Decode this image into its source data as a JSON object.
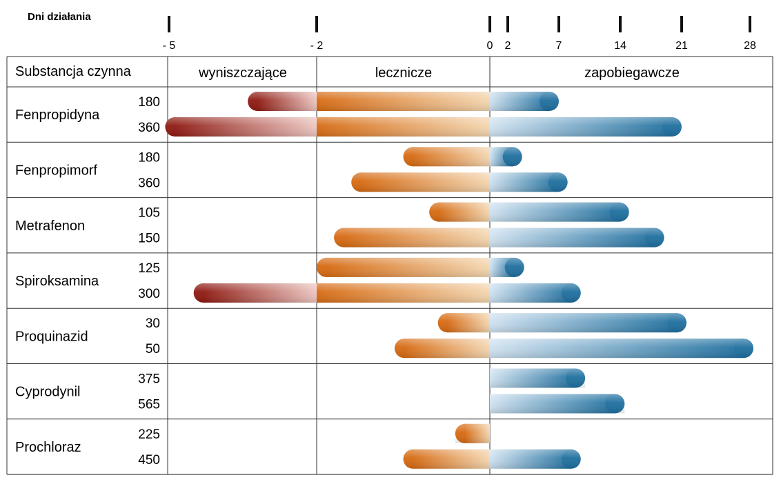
{
  "chart_data": {
    "type": "bar",
    "axis": {
      "title": "Dni działania",
      "ticks": [
        {
          "value": -5,
          "label": "- 5"
        },
        {
          "value": -2,
          "label": "- 2"
        },
        {
          "value": 0,
          "label": "0"
        },
        {
          "value": 2,
          "label": "2"
        },
        {
          "value": 7,
          "label": "7"
        },
        {
          "value": 14,
          "label": "14"
        },
        {
          "value": 21,
          "label": "21"
        },
        {
          "value": 28,
          "label": "28"
        }
      ]
    },
    "columns": {
      "substance": "Substancja czynna",
      "eradicative": "wyniszczające",
      "curative": "lecznicze",
      "protective": "zapobiegawcze"
    },
    "substances": [
      {
        "name": "Fenpropidyna",
        "doses": [
          {
            "dose": "180",
            "start": -3.4,
            "end": 7
          },
          {
            "dose": "360",
            "start": -5.2,
            "end": 21
          }
        ]
      },
      {
        "name": "Fenpropimorf",
        "doses": [
          {
            "dose": "180",
            "start": -1.0,
            "end": 3.4
          },
          {
            "dose": "360",
            "start": -1.6,
            "end": 8
          }
        ]
      },
      {
        "name": "Metrafenon",
        "doses": [
          {
            "dose": "105",
            "start": -0.7,
            "end": 15
          },
          {
            "dose": "150",
            "start": -1.8,
            "end": 19
          }
        ]
      },
      {
        "name": "Spiroksamina",
        "doses": [
          {
            "dose": "125",
            "start": -2.0,
            "end": 3.6
          },
          {
            "dose": "300",
            "start": -4.5,
            "end": 9.5
          }
        ]
      },
      {
        "name": "Proquinazid",
        "doses": [
          {
            "dose": "30",
            "start": -0.6,
            "end": 21.5
          },
          {
            "dose": "50",
            "start": -1.1,
            "end": 28.5
          }
        ]
      },
      {
        "name": "Cyprodynil",
        "doses": [
          {
            "dose": "375",
            "start": 0,
            "end": 10
          },
          {
            "dose": "565",
            "start": 0,
            "end": 14.5
          }
        ]
      },
      {
        "name": "Prochloraz",
        "doses": [
          {
            "dose": "225",
            "start": -0.4,
            "end": 0
          },
          {
            "dose": "450",
            "start": -1.0,
            "end": 9.5
          }
        ]
      }
    ],
    "colors": {
      "eradicative_dark": "#8e1a12",
      "eradicative_light": "#ecc5c0",
      "curative_dark": "#d66a12",
      "curative_light": "#f3d6b0",
      "protective_light": "#d0e2f0",
      "protective_dark": "#1f6f9f",
      "axis_red": "#d0241c",
      "axis_orange": "#d7782a"
    }
  }
}
